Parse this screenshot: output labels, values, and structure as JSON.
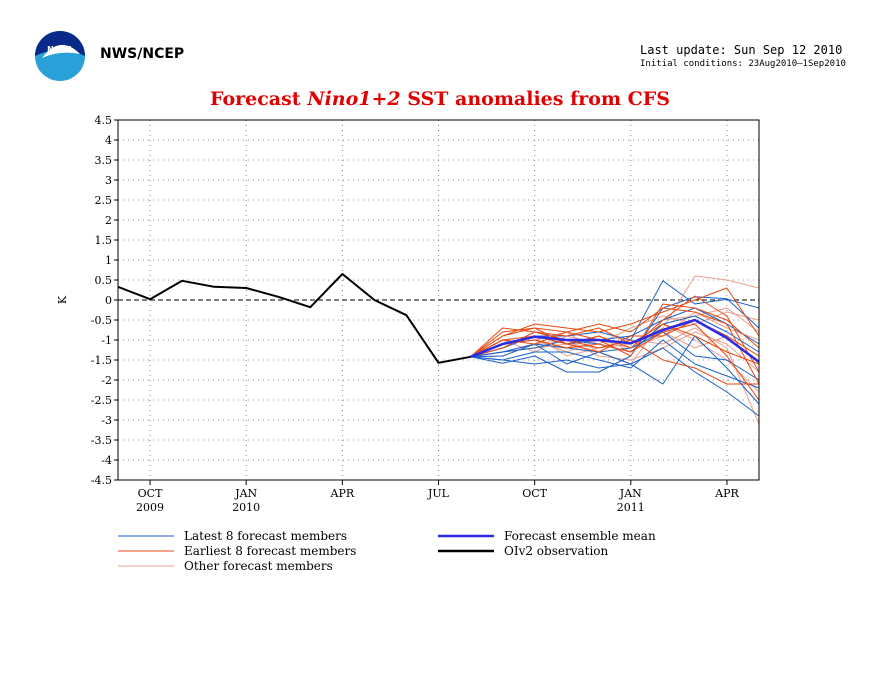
{
  "header": {
    "agency": "NWS/NCEP",
    "last_update": "Last update: Sun Sep 12 2010",
    "initial_conditions": "Initial conditions: 23Aug2010—1Sep2010",
    "logo_icon": "noaa-logo-icon"
  },
  "chart_data": {
    "type": "line",
    "title_prefix": "Forecast ",
    "title_italic": "Nino1+2",
    "title_suffix": " SST anomalies from CFS",
    "ylabel": "K",
    "ylim": [
      -4.5,
      4.5
    ],
    "yticks": [
      4.5,
      4,
      3.5,
      3,
      2.5,
      2,
      1.5,
      1,
      0.5,
      0,
      -0.5,
      -1,
      -1.5,
      -2,
      -2.5,
      -3,
      -3.5,
      -4,
      -4.5
    ],
    "ytick_labels": [
      "4.5",
      "4",
      "3.5",
      "3",
      "2.5",
      "2",
      "1.5",
      "1",
      "0.5",
      "0",
      "-0.5",
      "-1",
      "-1.5",
      "-2",
      "-2.5",
      "-3",
      "-3.5",
      "-4",
      "-4.5"
    ],
    "x_axis": {
      "start": "2009-09",
      "end": "2011-05",
      "ticks": [
        {
          "month": "2009-10",
          "label": "OCT",
          "year": "2009"
        },
        {
          "month": "2010-01",
          "label": "JAN",
          "year": "2010"
        },
        {
          "month": "2010-04",
          "label": "APR",
          "year": ""
        },
        {
          "month": "2010-07",
          "label": "JUL",
          "year": ""
        },
        {
          "month": "2010-10",
          "label": "OCT",
          "year": ""
        },
        {
          "month": "2011-01",
          "label": "JAN",
          "year": "2011"
        },
        {
          "month": "2011-04",
          "label": "APR",
          "year": ""
        }
      ]
    },
    "grid": "dotted",
    "zero_line": "dashed",
    "observation": {
      "name": "OIv2 observation",
      "color": "#000000",
      "x": [
        "2009-09",
        "2009-10",
        "2009-11",
        "2009-12",
        "2010-01",
        "2010-02",
        "2010-03",
        "2010-04",
        "2010-05",
        "2010-06",
        "2010-07",
        "2010-08"
      ],
      "y": [
        0.33,
        0.02,
        0.48,
        0.33,
        0.3,
        0.08,
        -0.18,
        0.65,
        0.0,
        -0.38,
        -1.57,
        -1.42
      ]
    },
    "forecast_x": [
      "2010-08",
      "2010-09",
      "2010-10",
      "2010-11",
      "2010-12",
      "2011-01",
      "2011-02",
      "2011-03",
      "2011-04",
      "2011-05"
    ],
    "ensemble_mean": {
      "name": "Forecast ensemble mean",
      "color": "#2a2ae8",
      "y": [
        -1.42,
        -1.1,
        -0.92,
        -1.0,
        -1.0,
        -1.08,
        -0.75,
        -0.5,
        -0.95,
        -1.55
      ]
    },
    "latest_members": {
      "name": "Latest 8 forecast members",
      "color": "#1a60c8",
      "series": [
        [
          -1.42,
          -1.58,
          -1.4,
          -1.8,
          -1.8,
          -1.4,
          -0.2,
          0.08,
          0.03,
          -0.7
        ],
        [
          -1.42,
          -1.3,
          -1.1,
          -1.2,
          -1.3,
          -1.6,
          -2.1,
          -0.9,
          -1.7,
          -2.6
        ],
        [
          -1.42,
          -1.2,
          -0.9,
          -0.9,
          -0.8,
          -1.0,
          0.48,
          -0.1,
          0.02,
          -0.2
        ],
        [
          -1.42,
          -1.5,
          -1.6,
          -1.5,
          -1.7,
          -1.6,
          -1.2,
          -1.8,
          -2.3,
          -2.9
        ],
        [
          -1.42,
          -1.4,
          -1.1,
          -1.6,
          -1.3,
          -1.2,
          -0.8,
          -1.4,
          -1.5,
          -2.0
        ],
        [
          -1.42,
          -1.3,
          -1.2,
          -1.0,
          -1.1,
          -1.3,
          -0.6,
          -0.4,
          -0.8,
          -1.3
        ],
        [
          -1.42,
          -1.1,
          -0.9,
          -1.1,
          -1.0,
          -0.9,
          -0.5,
          -0.2,
          -0.6,
          -1.1
        ],
        [
          -1.42,
          -1.5,
          -1.3,
          -1.3,
          -1.5,
          -1.7,
          -1.0,
          -1.6,
          -1.9,
          -2.2
        ]
      ]
    },
    "earliest_members": {
      "name": "Earliest 8 forecast members",
      "color": "#e84a10",
      "series": [
        [
          -1.42,
          -0.8,
          -0.7,
          -0.8,
          -0.6,
          -0.8,
          -0.2,
          -0.3,
          -0.6,
          -2.1
        ],
        [
          -1.42,
          -1.0,
          -0.9,
          -1.1,
          -0.9,
          -1.2,
          -0.5,
          0.1,
          -0.4,
          -1.8
        ],
        [
          -1.42,
          -0.9,
          -0.6,
          -0.7,
          -0.8,
          -0.6,
          -0.3,
          0.0,
          0.3,
          -0.9
        ],
        [
          -1.42,
          -1.1,
          -1.0,
          -1.2,
          -1.1,
          -1.3,
          -0.8,
          -0.6,
          -1.4,
          -2.5
        ],
        [
          -1.42,
          -1.2,
          -0.8,
          -1.0,
          -1.2,
          -1.0,
          -1.5,
          -1.7,
          -2.1,
          -2.1
        ],
        [
          -1.42,
          -0.7,
          -0.8,
          -0.9,
          -0.7,
          -1.1,
          -0.6,
          -0.9,
          -1.3,
          -1.6
        ],
        [
          -1.42,
          -1.0,
          -1.1,
          -0.8,
          -1.0,
          -1.4,
          -0.1,
          -0.2,
          -0.5,
          -1.2
        ],
        [
          -1.42,
          -0.9,
          -0.7,
          -1.1,
          -1.3,
          -0.9,
          -0.9,
          -0.5,
          -0.9,
          -1.4
        ]
      ]
    },
    "other_members": {
      "name": "Other forecast members",
      "color": "#e8a090",
      "series": [
        [
          -1.42,
          -1.3,
          -1.2,
          -1.1,
          -1.2,
          -1.1,
          -0.7,
          0.6,
          0.5,
          0.3
        ],
        [
          -1.42,
          -1.1,
          -1.0,
          -1.3,
          -1.0,
          -1.2,
          -0.9,
          -0.3,
          -0.7,
          -1.0
        ],
        [
          -1.42,
          -1.2,
          -0.8,
          -1.0,
          -1.4,
          -1.5,
          -1.2,
          -0.8,
          -1.1,
          -1.8
        ],
        [
          -1.42,
          -1.0,
          -1.3,
          -0.9,
          -1.1,
          -0.7,
          -0.4,
          -0.6,
          -0.3,
          -0.5
        ],
        [
          -1.42,
          -1.4,
          -1.1,
          -1.2,
          -0.9,
          -1.3,
          -0.6,
          -1.0,
          -1.5,
          -2.3
        ],
        [
          -1.42,
          -1.2,
          -0.9,
          -1.4,
          -1.2,
          -1.0,
          -1.1,
          -0.7,
          -1.2,
          -3.1
        ],
        [
          -1.42,
          -1.1,
          -1.0,
          -0.8,
          -1.3,
          -1.6,
          -0.5,
          -0.4,
          -0.2,
          -0.8
        ],
        [
          -1.42,
          -1.3,
          -1.1,
          -1.0,
          -1.0,
          -1.1,
          -0.8,
          -1.2,
          -0.9,
          -1.4
        ]
      ]
    },
    "legend": [
      {
        "label": "Latest 8 forecast members",
        "color": "#1a60c8",
        "weight": "thin"
      },
      {
        "label": "Forecast ensemble mean",
        "color": "#2a2ae8",
        "weight": "thick"
      },
      {
        "label": "Earliest 8 forecast members",
        "color": "#e84a10",
        "weight": "thin"
      },
      {
        "label": "OIv2 observation",
        "color": "#000000",
        "weight": "thick"
      },
      {
        "label": "Other forecast members",
        "color": "#e8a090",
        "weight": "thin"
      }
    ]
  }
}
